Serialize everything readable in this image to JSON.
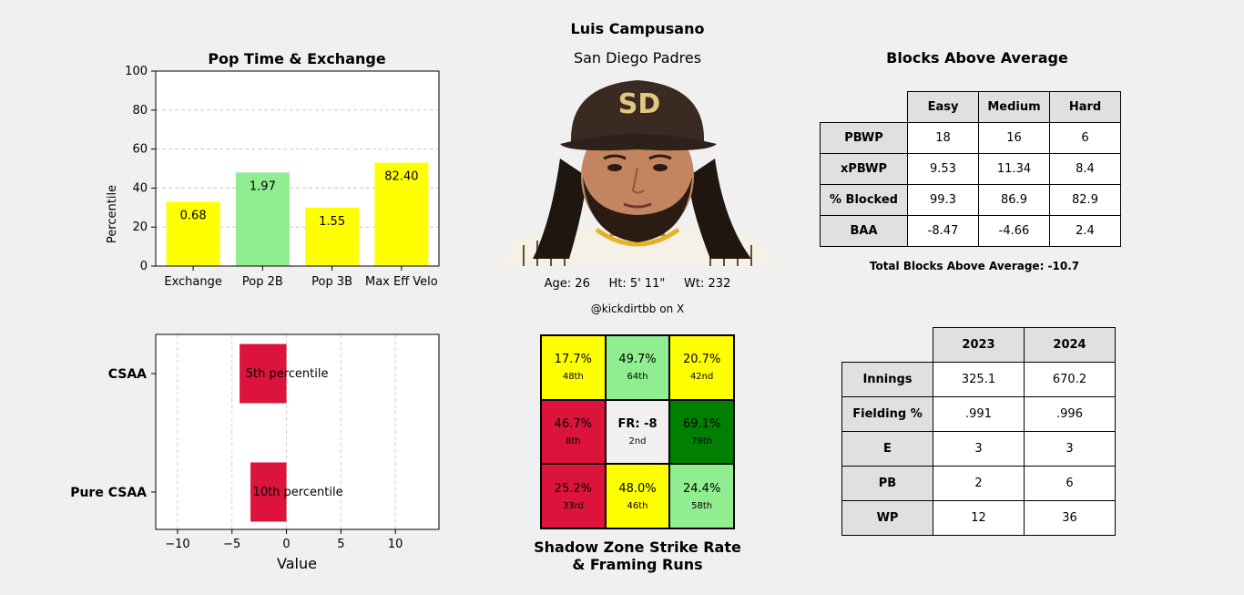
{
  "header": {
    "player_name": "Luis Campusano",
    "team": "San Diego Padres",
    "bio": "Age: 26     Ht: 5' 11\"     Wt: 232",
    "handle": "@kickdirtbb on X"
  },
  "colors": {
    "yellow": "#ffff00",
    "light_green": "#90ee90",
    "green": "#008000",
    "crimson": "#dc143c",
    "neutral": "#f0f0f0"
  },
  "chart_data": [
    {
      "type": "bar",
      "title": "Pop Time & Exchange",
      "ylabel": "Percentile",
      "xlabel": "",
      "ylim": [
        0,
        100
      ],
      "yticks": [
        0,
        20,
        40,
        60,
        80,
        100
      ],
      "grid": "y",
      "categories": [
        "Exchange",
        "Pop 2B",
        "Pop 3B",
        "Max Eff Velo"
      ],
      "values": [
        33,
        48,
        30,
        53
      ],
      "labels": [
        "0.68",
        "1.97",
        "1.55",
        "82.40"
      ],
      "colors": [
        "#ffff00",
        "#90ee90",
        "#ffff00",
        "#ffff00"
      ]
    },
    {
      "type": "bar",
      "orientation": "horizontal",
      "title": "",
      "xlabel": "Value",
      "ylabel": "",
      "xlim": [
        -12,
        14
      ],
      "xticks": [
        -10,
        -5,
        0,
        5,
        10
      ],
      "grid": "x",
      "categories": [
        "CSAA",
        "Pure CSAA"
      ],
      "values": [
        -4.3,
        -3.3
      ],
      "labels": [
        "5th percentile",
        "10th percentile"
      ],
      "colors": [
        "#dc143c",
        "#dc143c"
      ]
    }
  ],
  "zone": {
    "title_line1": "Shadow Zone Strike Rate",
    "title_line2": "& Framing Runs",
    "cells": [
      {
        "value": "17.7%",
        "rank": "48th",
        "color": "#ffff00",
        "bold": false
      },
      {
        "value": "49.7%",
        "rank": "64th",
        "color": "#90ee90",
        "bold": false
      },
      {
        "value": "20.7%",
        "rank": "42nd",
        "color": "#ffff00",
        "bold": false
      },
      {
        "value": "46.7%",
        "rank": "8th",
        "color": "#dc143c",
        "bold": false
      },
      {
        "value": "FR: -8",
        "rank": "2nd",
        "color": "#f0f0f0",
        "bold": true
      },
      {
        "value": "69.1%",
        "rank": "79th",
        "color": "#008000",
        "bold": false
      },
      {
        "value": "25.2%",
        "rank": "33rd",
        "color": "#dc143c",
        "bold": false
      },
      {
        "value": "48.0%",
        "rank": "46th",
        "color": "#ffff00",
        "bold": false
      },
      {
        "value": "24.4%",
        "rank": "58th",
        "color": "#90ee90",
        "bold": false
      }
    ]
  },
  "baa": {
    "title": "Blocks Above Average",
    "columns": [
      "Easy",
      "Medium",
      "Hard"
    ],
    "rows": [
      {
        "label": "PBWP",
        "values": [
          "18",
          "16",
          "6"
        ]
      },
      {
        "label": "xPBWP",
        "values": [
          "9.53",
          "11.34",
          "8.4"
        ]
      },
      {
        "label": "% Blocked",
        "values": [
          "99.3",
          "86.9",
          "82.9"
        ]
      },
      {
        "label": "BAA",
        "values": [
          "-8.47",
          "-4.66",
          "2.4"
        ]
      }
    ],
    "total": "Total Blocks Above Average: -10.7"
  },
  "fielding": {
    "columns": [
      "2023",
      "2024"
    ],
    "rows": [
      {
        "label": "Innings",
        "values": [
          "325.1",
          "670.2"
        ]
      },
      {
        "label": "Fielding %",
        "values": [
          ".991",
          ".996"
        ]
      },
      {
        "label": "E",
        "values": [
          "3",
          "3"
        ]
      },
      {
        "label": "PB",
        "values": [
          "2",
          "6"
        ]
      },
      {
        "label": "WP",
        "values": [
          "12",
          "36"
        ]
      }
    ]
  }
}
